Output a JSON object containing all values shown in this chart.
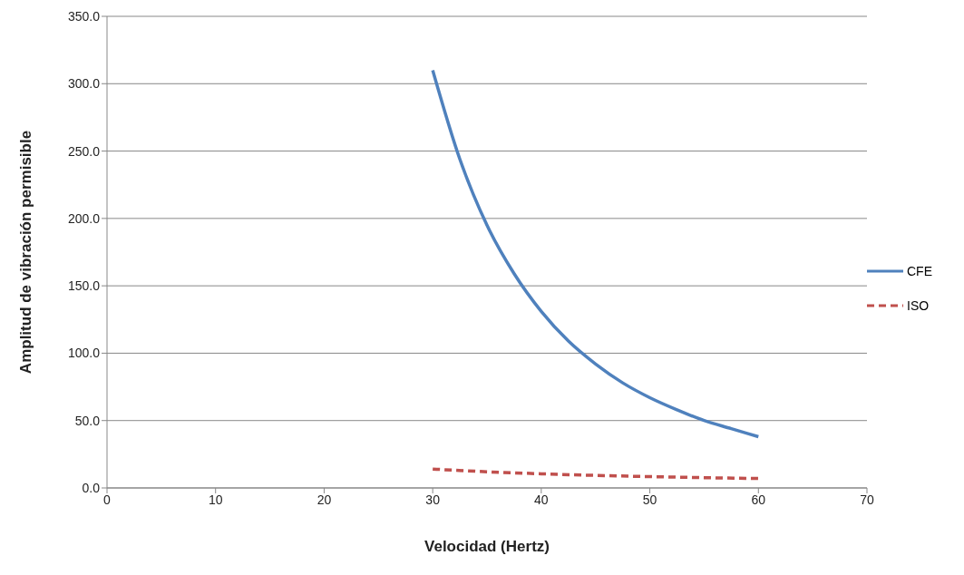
{
  "chart_data": {
    "type": "line",
    "xlabel": "Velocidad (Hertz)",
    "ylabel": "Amplitud de vibración permisible",
    "xlim": [
      0,
      70
    ],
    "xticks": [
      0,
      10,
      20,
      30,
      40,
      50,
      60,
      70
    ],
    "ylim": [
      0,
      350
    ],
    "yticks": [
      {
        "value": 0,
        "label": "0.0"
      },
      {
        "value": 50,
        "label": "50.0"
      },
      {
        "value": 100,
        "label": "100.0"
      },
      {
        "value": 150,
        "label": "150.0"
      },
      {
        "value": 200,
        "label": "200.0"
      },
      {
        "value": 250,
        "label": "250.0"
      },
      {
        "value": 300,
        "label": "300.0"
      },
      {
        "value": 350,
        "label": "350.0"
      }
    ],
    "grid": "y",
    "legend": "right",
    "marker": "none",
    "series": [
      {
        "name": "CFE",
        "color": "#4f81bd",
        "line_style": "solid",
        "x": [
          30,
          32.5,
          35,
          37.5,
          40,
          42.5,
          45,
          47.5,
          50,
          52.5,
          55,
          57.5,
          60
        ],
        "values": [
          310,
          244,
          195,
          159,
          131,
          109,
          92,
          78,
          67,
          58,
          50,
          44,
          38
        ]
      },
      {
        "name": "ISO",
        "color": "#c0504d",
        "line_style": "dashed",
        "x": [
          30,
          35,
          40,
          45,
          50,
          55,
          60
        ],
        "values": [
          14,
          12,
          10.5,
          9.3,
          8.4,
          7.6,
          7
        ]
      }
    ]
  }
}
